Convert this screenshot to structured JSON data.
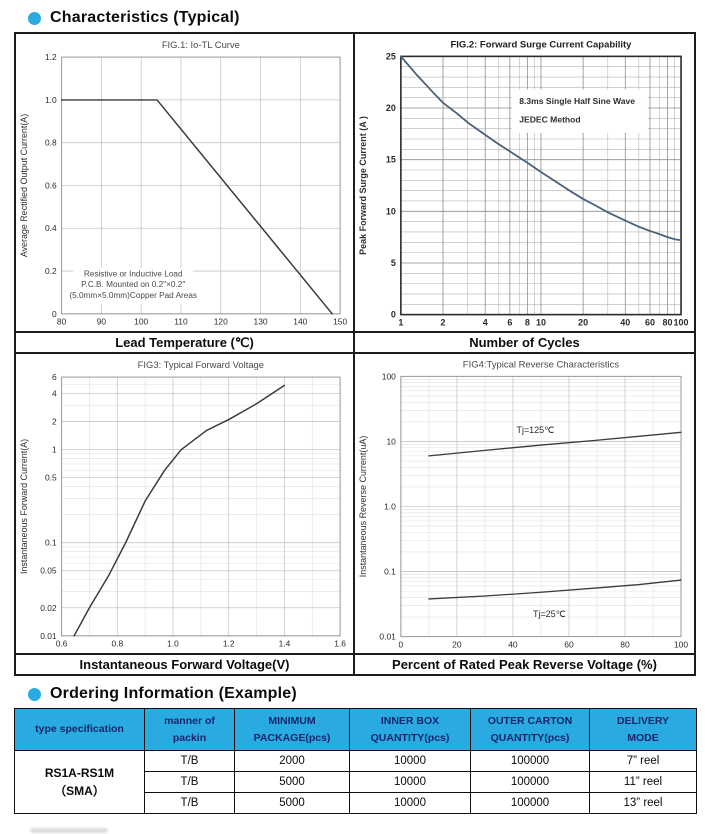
{
  "colors": {
    "accent": "#29abe2",
    "table_header_text": "#16246b",
    "fig2_curve": "#4a6178"
  },
  "sections": {
    "characteristics_title": "Characteristics (Typical)",
    "ordering_title": "Ordering Information (Example)"
  },
  "chart_data": [
    {
      "type": "line",
      "title": "FIG.1: Io-TL Curve",
      "xlabel": "Lead Temperature (℃)",
      "ylabel": "Average Rectified Output Current(A)",
      "x": {
        "scale": "linear",
        "min": 80,
        "max": 150,
        "ticks": [
          [
            80,
            "80"
          ],
          [
            90,
            "90"
          ],
          [
            100,
            "100"
          ],
          [
            110,
            "110"
          ],
          [
            120,
            "120"
          ],
          [
            130,
            "130"
          ],
          [
            140,
            "140"
          ],
          [
            150,
            "150"
          ]
        ]
      },
      "y": {
        "scale": "linear",
        "min": 0,
        "max": 1.2,
        "ticks": [
          [
            0,
            "0"
          ],
          [
            0.2,
            "0.2"
          ],
          [
            0.4,
            "0.4"
          ],
          [
            0.6,
            "0.6"
          ],
          [
            0.8,
            "0.8"
          ],
          [
            1,
            "1.0"
          ],
          [
            1.2,
            "1.2"
          ]
        ]
      },
      "style": {
        "grid_color": "#c6c6c6",
        "minor_color": "#e0e0e0",
        "border": "#9a9a9a",
        "border_w": 1,
        "title_color": "#4a4a4a",
        "title_bold": false,
        "bold_ticks": false
      },
      "boxes": [
        {
          "x1": 83,
          "y1": 0.045,
          "x2": 113,
          "y2": 0.215
        }
      ],
      "series": [
        {
          "name": "Io-TL",
          "color": "#3b3b3b",
          "width": 1.5,
          "points": [
            [
              80,
              1
            ],
            [
              104,
              1
            ],
            [
              148,
              0
            ]
          ]
        }
      ],
      "annotations": [
        {
          "x": 98,
          "y": 0.175,
          "text": "Resistive or Inductive Load",
          "anchor": "middle",
          "size": 8.3,
          "color": "#4a4a4a"
        },
        {
          "x": 98,
          "y": 0.125,
          "text": "P.C.B. Mounted on 0.2\"×0.2\"",
          "anchor": "middle",
          "size": 8.3,
          "color": "#4a4a4a"
        },
        {
          "x": 98,
          "y": 0.075,
          "text": "(5.0mm×5.0mm)Copper Pad Areas",
          "anchor": "middle",
          "size": 8.3,
          "color": "#4a4a4a"
        }
      ]
    },
    {
      "type": "line",
      "title": "FIG.2: Forward Surge Current Capability",
      "xlabel": "Number of Cycles",
      "ylabel": "Peak Forward Surge Current (A )",
      "x": {
        "scale": "log",
        "min": 1,
        "max": 100,
        "ticks": [
          [
            1,
            "1"
          ],
          [
            2,
            "2"
          ],
          [
            4,
            "4"
          ],
          [
            6,
            "6"
          ],
          [
            8,
            "8"
          ],
          [
            10,
            "10"
          ],
          [
            20,
            "20"
          ],
          [
            40,
            "40"
          ],
          [
            60,
            "60"
          ],
          [
            80,
            "80"
          ],
          [
            100,
            "100"
          ]
        ],
        "minors": [
          3,
          5,
          7,
          9,
          30,
          50,
          70,
          90
        ]
      },
      "y": {
        "scale": "linear",
        "min": 0,
        "max": 25,
        "ticks": [
          [
            0,
            "0"
          ],
          [
            5,
            "5"
          ],
          [
            10,
            "10"
          ],
          [
            15,
            "15"
          ],
          [
            20,
            "20"
          ],
          [
            25,
            "25"
          ]
        ],
        "minors": [
          1,
          2,
          3,
          4,
          6,
          7,
          8,
          9,
          11,
          12,
          13,
          14,
          16,
          17,
          18,
          19,
          21,
          22,
          23,
          24
        ]
      },
      "style": {
        "grid_color": "#8e8e8e",
        "minor_color": "#b5b5b5",
        "border": "#2a2a2a",
        "border_w": 1.6,
        "title_color": "#1e1e1e",
        "title_bold": true,
        "bold_ticks": true
      },
      "boxes": [
        {
          "x1": 6.2,
          "y1": 17.6,
          "x2": 58,
          "y2": 21.8
        }
      ],
      "series": [
        {
          "name": "surge",
          "color": "#4a6178",
          "width": 1.8,
          "points": [
            [
              1,
              25
            ],
            [
              1.3,
              23.2
            ],
            [
              1.7,
              21.5
            ],
            [
              2,
              20.5
            ],
            [
              2.5,
              19.5
            ],
            [
              3,
              18.6
            ],
            [
              4,
              17.4
            ],
            [
              5,
              16.5
            ],
            [
              6,
              15.8
            ],
            [
              8,
              14.7
            ],
            [
              10,
              13.8
            ],
            [
              13,
              12.8
            ],
            [
              16,
              12
            ],
            [
              20,
              11.2
            ],
            [
              25,
              10.5
            ],
            [
              30,
              9.9
            ],
            [
              40,
              9.1
            ],
            [
              50,
              8.5
            ],
            [
              60,
              8.1
            ],
            [
              70,
              7.8
            ],
            [
              80,
              7.5
            ],
            [
              90,
              7.3
            ],
            [
              100,
              7.2
            ]
          ]
        }
      ],
      "annotations": [
        {
          "x": 7,
          "y": 20.4,
          "text": "8.3ms Single Half Sine Wave",
          "anchor": "start",
          "size": 8.6,
          "color": "#2e2e2e",
          "bold": true
        },
        {
          "x": 7,
          "y": 18.6,
          "text": "JEDEC Method",
          "anchor": "start",
          "size": 8.6,
          "color": "#2e2e2e",
          "bold": true
        }
      ]
    },
    {
      "type": "line",
      "title": "FIG3: Typical Forward Voltage",
      "xlabel": "Instantaneous Forward Voltage(V)",
      "ylabel": "Instantaneous Forward Current(A)",
      "x": {
        "scale": "linear",
        "min": 0.6,
        "max": 1.6,
        "ticks": [
          [
            0.6,
            "0.6"
          ],
          [
            0.8,
            "0.8"
          ],
          [
            1,
            "1.0"
          ],
          [
            1.2,
            "1.2"
          ],
          [
            1.4,
            "1.4"
          ],
          [
            1.6,
            "1.6"
          ]
        ],
        "minors": [
          0.7,
          0.9,
          1.1,
          1.3,
          1.5
        ]
      },
      "y": {
        "scale": "log",
        "min": 0.01,
        "max": 6,
        "ticks": [
          [
            6,
            "6"
          ],
          [
            4,
            "4"
          ],
          [
            2,
            "2"
          ],
          [
            1,
            "1"
          ],
          [
            0.5,
            "0.5"
          ],
          [
            0.1,
            "0.1"
          ],
          [
            0.05,
            "0.05"
          ],
          [
            0.02,
            "0.02"
          ],
          [
            0.01,
            "0.01"
          ]
        ],
        "minors": [
          0.03,
          0.04,
          0.06,
          0.07,
          0.08,
          0.09,
          0.2,
          0.3,
          0.4,
          0.6,
          0.7,
          0.8,
          0.9,
          3,
          5
        ]
      },
      "style": {
        "grid_color": "#c6c6c6",
        "minor_color": "#e0e0e0",
        "border": "#9a9a9a",
        "border_w": 1,
        "title_color": "#4a4a4a",
        "title_bold": false,
        "bold_ticks": false
      },
      "boxes": [],
      "series": [
        {
          "name": "Vf",
          "color": "#3b3b3b",
          "width": 1.5,
          "points": [
            [
              0.645,
              0.01
            ],
            [
              0.7,
              0.02
            ],
            [
              0.77,
              0.045
            ],
            [
              0.83,
              0.1
            ],
            [
              0.9,
              0.28
            ],
            [
              0.97,
              0.6
            ],
            [
              1.03,
              1.0
            ],
            [
              1.12,
              1.6
            ],
            [
              1.2,
              2.1
            ],
            [
              1.3,
              3.1
            ],
            [
              1.4,
              4.9
            ]
          ]
        }
      ],
      "annotations": []
    },
    {
      "type": "line",
      "title": "FIG4:Typical Reverse Characteristics",
      "xlabel": "Percent of Rated Peak Reverse Voltage (%)",
      "ylabel": "Instantaneous Reverse Current(uA)",
      "x": {
        "scale": "linear",
        "min": 0,
        "max": 100,
        "ticks": [
          [
            0,
            "0"
          ],
          [
            20,
            "20"
          ],
          [
            40,
            "40"
          ],
          [
            60,
            "60"
          ],
          [
            80,
            "80"
          ],
          [
            100,
            "100"
          ]
        ],
        "minors": [
          10,
          30,
          50,
          70,
          90
        ]
      },
      "y": {
        "scale": "log",
        "min": 0.01,
        "max": 100,
        "ticks": [
          [
            100,
            "100"
          ],
          [
            10,
            "10"
          ],
          [
            1,
            "1.0"
          ],
          [
            0.1,
            "0.1"
          ],
          [
            0.01,
            "0.01"
          ]
        ],
        "minors": [
          0.02,
          0.03,
          0.04,
          0.05,
          0.06,
          0.07,
          0.08,
          0.09,
          0.2,
          0.3,
          0.4,
          0.5,
          0.6,
          0.7,
          0.8,
          0.9,
          2,
          3,
          4,
          5,
          6,
          7,
          8,
          9,
          20,
          30,
          40,
          50,
          60,
          70,
          80,
          90
        ]
      },
      "style": {
        "grid_color": "#c6c6c6",
        "minor_color": "#e2e2e2",
        "border": "#9a9a9a",
        "border_w": 1,
        "title_color": "#4a4a4a",
        "title_bold": false,
        "bold_ticks": false
      },
      "boxes": [],
      "series": [
        {
          "name": "Tj=125℃",
          "color": "#3b3b3b",
          "width": 1.3,
          "points": [
            [
              10,
              6
            ],
            [
              30,
              7.3
            ],
            [
              50,
              8.8
            ],
            [
              70,
              10.4
            ],
            [
              100,
              13.8
            ]
          ]
        },
        {
          "name": "Tj=25℃",
          "color": "#3b3b3b",
          "width": 1.3,
          "points": [
            [
              10,
              0.038
            ],
            [
              30,
              0.042
            ],
            [
              50,
              0.048
            ],
            [
              70,
              0.056
            ],
            [
              85,
              0.063
            ],
            [
              100,
              0.074
            ]
          ]
        }
      ],
      "annotations": [
        {
          "x": 48,
          "y": 13.5,
          "text": "Tj=125℃",
          "anchor": "middle",
          "size": 9,
          "color": "#2e2e2e"
        },
        {
          "x": 53,
          "y": 0.02,
          "text": "Tj=25℃",
          "anchor": "middle",
          "size": 9,
          "color": "#2e2e2e"
        }
      ]
    }
  ],
  "ordering_table": {
    "headers": [
      {
        "line1": "type specification",
        "line2": ""
      },
      {
        "line1": "manner of",
        "line2": "packin"
      },
      {
        "line1": "MINIMUM",
        "line2": "PACKAGE(pcs)"
      },
      {
        "line1": "INNER BOX",
        "line2": "QUANTITY(pcs)"
      },
      {
        "line1": "OUTER CARTON",
        "line2": "QUANTITY(pcs)"
      },
      {
        "line1": "DELIVERY",
        "line2": "MODE"
      }
    ],
    "group": {
      "line1": "RS1A-RS1M",
      "line2": "（SMA）"
    },
    "rows": [
      [
        "T/B",
        "2000",
        "10000",
        "100000",
        "7” reel"
      ],
      [
        "T/B",
        "5000",
        "10000",
        "100000",
        "11” reel"
      ],
      [
        "T/B",
        "5000",
        "10000",
        "100000",
        "13” reel"
      ]
    ]
  }
}
